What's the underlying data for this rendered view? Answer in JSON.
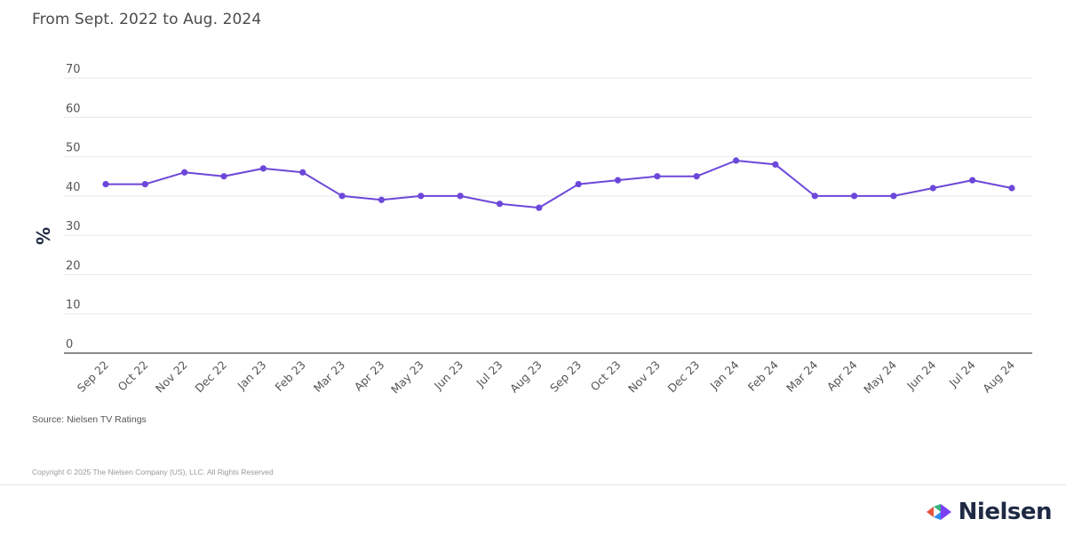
{
  "subtitle": "From Sept. 2022 to Aug. 2024",
  "source": "Source: Nielsen TV Ratings",
  "copyright": "Copyright © 2025 The Nielsen Company (US), LLC. All Rights Reserved",
  "brand": {
    "name": "Nielsen",
    "logo_icon": "nielsen-logo-icon"
  },
  "colors": {
    "line": "#6c47d9",
    "grid": "#e8e8e8",
    "axis": "#444444"
  },
  "chart_data": {
    "type": "line",
    "ylabel": "%",
    "xlabel": "",
    "ylim": [
      0,
      70
    ],
    "yticks": [
      0,
      10,
      20,
      30,
      40,
      50,
      60,
      70
    ],
    "grid": true,
    "categories": [
      "Sep 22",
      "Oct 22",
      "Nov 22",
      "Dec 22",
      "Jan 23",
      "Feb 23",
      "Mar 23",
      "Apr 23",
      "May 23",
      "Jun 23",
      "Jul 23",
      "Aug 23",
      "Sep 23",
      "Oct 23",
      "Nov 23",
      "Dec 23",
      "Jan 24",
      "Feb 24",
      "Mar 24",
      "Apr 24",
      "May 24",
      "Jun 24",
      "Jul 24",
      "Aug 24"
    ],
    "series": [
      {
        "values": [
          43,
          43,
          46,
          45,
          47,
          46,
          40,
          39,
          40,
          40,
          38,
          37,
          43,
          44,
          45,
          45,
          49,
          48,
          40,
          40,
          40,
          42,
          44,
          42
        ]
      }
    ]
  }
}
